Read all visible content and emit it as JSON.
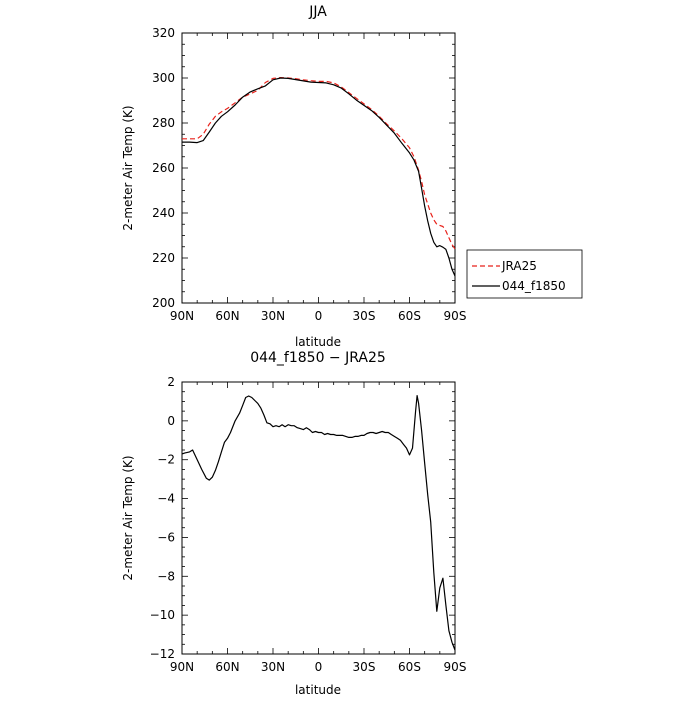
{
  "chart_data": [
    {
      "type": "line",
      "title": "JJA",
      "xlabel": "latitude",
      "ylabel": "2-meter Air Temp (K)",
      "xlim": [
        90,
        -90
      ],
      "ylim": [
        200,
        320
      ],
      "x_ticks": [
        90,
        60,
        30,
        0,
        -30,
        -60,
        -90
      ],
      "x_tick_labels": [
        "90N",
        "60N",
        "30N",
        "0",
        "30S",
        "60S",
        "90S"
      ],
      "y_ticks": [
        200,
        220,
        240,
        260,
        280,
        300,
        320
      ],
      "y_tick_labels": [
        "200",
        "220",
        "240",
        "260",
        "280",
        "300",
        "320"
      ],
      "grid": false,
      "legend": "outside right",
      "series": [
        {
          "name": "JRA25",
          "color": "#e8221b",
          "dash": "dashed",
          "x": [
            90,
            85,
            80,
            76,
            72,
            68,
            64,
            60,
            55,
            50,
            45,
            40,
            35,
            30,
            25,
            20,
            15,
            10,
            5,
            0,
            -5,
            -10,
            -15,
            -20,
            -25,
            -30,
            -35,
            -40,
            -45,
            -50,
            -55,
            -60,
            -63,
            -66,
            -68,
            -70,
            -72,
            -74,
            -76,
            -78,
            -80,
            -82,
            -84,
            -86,
            -88,
            -90
          ],
          "y": [
            273,
            273,
            273,
            275,
            279.5,
            283,
            285,
            286.5,
            289,
            291.5,
            293,
            294.5,
            298,
            299.8,
            300.2,
            300,
            299.7,
            299.2,
            298.8,
            298.5,
            298.5,
            297.8,
            296,
            293.5,
            291,
            288.5,
            286,
            283,
            279.5,
            276.5,
            273,
            269,
            265,
            259,
            254,
            248,
            244,
            240,
            237,
            235,
            234.5,
            234,
            232,
            229,
            226,
            224
          ]
        },
        {
          "name": "044_f1850",
          "color": "#000000",
          "dash": "solid",
          "x": [
            90,
            85,
            80,
            76,
            72,
            68,
            64,
            60,
            55,
            50,
            45,
            40,
            35,
            30,
            25,
            20,
            15,
            10,
            5,
            0,
            -5,
            -10,
            -15,
            -20,
            -25,
            -30,
            -35,
            -40,
            -45,
            -50,
            -55,
            -60,
            -63,
            -66,
            -68,
            -70,
            -72,
            -74,
            -76,
            -78,
            -80,
            -82,
            -84,
            -86,
            -88,
            -90
          ],
          "y": [
            271.5,
            271.5,
            271.3,
            272.2,
            276,
            280,
            283,
            285,
            288,
            291.5,
            293.8,
            295.2,
            296.5,
            299.2,
            300,
            299.8,
            299.3,
            298.7,
            298.2,
            298,
            297.8,
            297,
            295.5,
            293,
            290.2,
            287.8,
            285.5,
            282.5,
            279,
            275.5,
            271,
            266.7,
            263.5,
            258.5,
            251,
            243,
            236.5,
            231,
            227,
            225,
            225.5,
            224.8,
            223.8,
            220,
            215,
            212
          ]
        }
      ]
    },
    {
      "type": "line",
      "title": "044_f1850 − JRA25",
      "xlabel": "latitude",
      "ylabel": "2-meter Air Temp (K)",
      "xlim": [
        90,
        -90
      ],
      "ylim": [
        -12,
        2
      ],
      "x_ticks": [
        90,
        60,
        30,
        0,
        -30,
        -60,
        -90
      ],
      "x_tick_labels": [
        "90N",
        "60N",
        "30N",
        "0",
        "30S",
        "60S",
        "90S"
      ],
      "y_ticks": [
        -12,
        -10,
        -8,
        -6,
        -4,
        -2,
        0,
        2
      ],
      "y_tick_labels": [
        "−12",
        "−10",
        "−8",
        "−6",
        "−4",
        "−2",
        "0",
        "2"
      ],
      "grid": false,
      "series": [
        {
          "color": "#000000",
          "dash": "solid",
          "x": [
            90,
            88,
            85,
            83,
            80,
            77,
            74,
            72,
            70,
            68,
            66,
            64,
            62,
            60,
            58,
            55,
            52,
            50,
            48,
            46,
            44,
            42,
            40,
            38,
            36,
            34,
            32,
            30,
            28,
            26,
            24,
            22,
            20,
            18,
            16,
            14,
            12,
            10,
            8,
            6,
            4,
            2,
            0,
            -2,
            -4,
            -6,
            -8,
            -10,
            -12,
            -14,
            -16,
            -18,
            -20,
            -22,
            -24,
            -26,
            -28,
            -30,
            -32,
            -34,
            -36,
            -38,
            -40,
            -42,
            -44,
            -46,
            -48,
            -50,
            -52,
            -54,
            -56,
            -58,
            -60,
            -62,
            -64,
            -65,
            -66,
            -68,
            -70,
            -72,
            -74,
            -76,
            -78,
            -80,
            -82,
            -84,
            -86,
            -88,
            -90
          ],
          "y": [
            -1.7,
            -1.65,
            -1.6,
            -1.5,
            -2,
            -2.5,
            -2.95,
            -3.05,
            -2.9,
            -2.55,
            -2.1,
            -1.6,
            -1.1,
            -0.9,
            -0.6,
            0,
            0.4,
            0.8,
            1.2,
            1.28,
            1.2,
            1.05,
            0.9,
            0.65,
            0.3,
            -0.1,
            -0.15,
            -0.3,
            -0.25,
            -0.3,
            -0.2,
            -0.3,
            -0.2,
            -0.25,
            -0.25,
            -0.35,
            -0.4,
            -0.45,
            -0.35,
            -0.45,
            -0.6,
            -0.55,
            -0.6,
            -0.6,
            -0.7,
            -0.65,
            -0.7,
            -0.7,
            -0.75,
            -0.75,
            -0.75,
            -0.8,
            -0.85,
            -0.85,
            -0.8,
            -0.8,
            -0.75,
            -0.75,
            -0.65,
            -0.6,
            -0.6,
            -0.65,
            -0.6,
            -0.55,
            -0.6,
            -0.6,
            -0.7,
            -0.8,
            -0.9,
            -1.0,
            -1.2,
            -1.4,
            -1.75,
            -1.4,
            0.5,
            1.3,
            0.9,
            -0.5,
            -2.2,
            -3.8,
            -5.2,
            -7.8,
            -9.8,
            -8.6,
            -8.1,
            -9.5,
            -10.8,
            -11.4,
            -11.8
          ]
        }
      ]
    }
  ]
}
